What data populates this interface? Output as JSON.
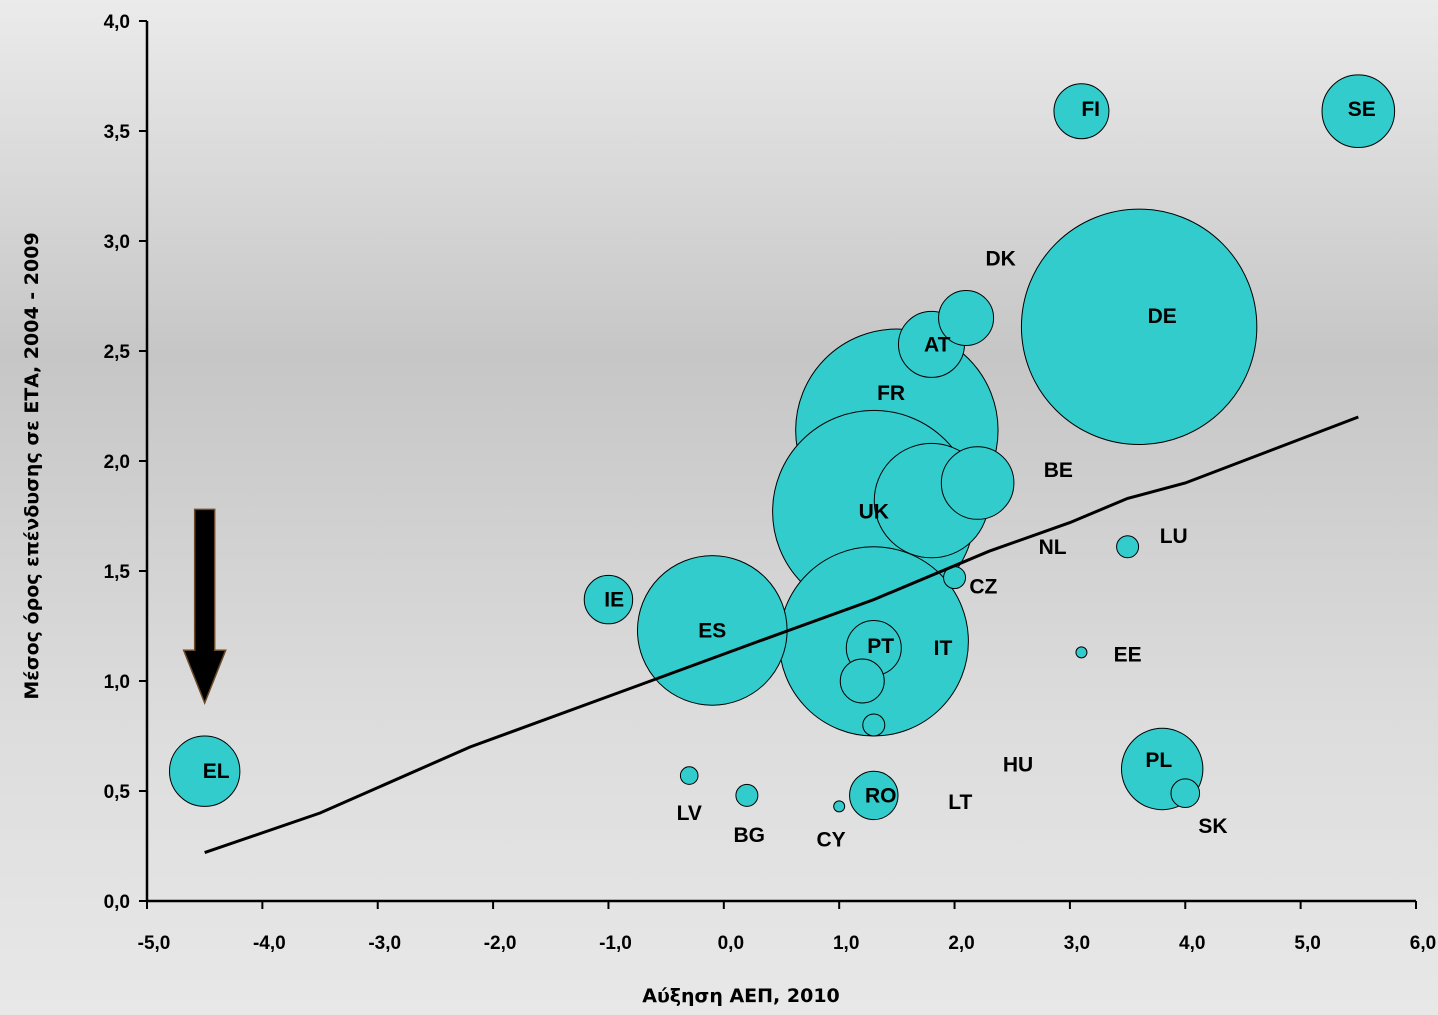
{
  "colors": {
    "bubble_fill": "#33CCCC",
    "background_outer": "#e4e4e4",
    "background_band": "#c8c8c8",
    "trendline": "#000000",
    "arrow": "#000000"
  },
  "chart_data": {
    "type": "scatter",
    "subtype": "bubble",
    "title": "",
    "xlabel": "Αύξηση ΑΕΠ, 2010",
    "ylabel": "Μέσος όρος επένδυσης σε ΕΤΑ, 2004 - 2009",
    "xlim": [
      -5.0,
      6.0
    ],
    "ylim": [
      0.0,
      4.0
    ],
    "x_ticks": [
      -5,
      -4,
      -3,
      -2,
      -1,
      0,
      1,
      2,
      3,
      4,
      5,
      6
    ],
    "x_tick_labels": [
      "-5,0",
      "-4,0",
      "-3,0",
      "-2,0",
      "-1,0",
      "0,0",
      "1,0",
      "2,0",
      "3,0",
      "4,0",
      "5,0",
      "6,0"
    ],
    "y_ticks": [
      0,
      0.5,
      1.0,
      1.5,
      2.0,
      2.5,
      3.0,
      3.5,
      4.0
    ],
    "y_tick_labels": [
      "0,0",
      "0,5",
      "1,0",
      "1,5",
      "2,0",
      "2,5",
      "3,0",
      "3,5",
      "4,0"
    ],
    "grid": false,
    "legend": "none",
    "points": [
      {
        "label": "DE",
        "x": 3.6,
        "y": 2.61,
        "size": 107,
        "label_dx": 0.2,
        "label_dy": 0.05
      },
      {
        "label": "FR",
        "x": 1.5,
        "y": 2.14,
        "size": 92,
        "label_dx": -0.05,
        "label_dy": 0.17
      },
      {
        "label": "UK",
        "x": 1.3,
        "y": 1.77,
        "size": 92,
        "label_dx": 0.0,
        "label_dy": 0.0
      },
      {
        "label": "IT",
        "x": 1.3,
        "y": 1.18,
        "size": 86,
        "label_dx": 0.6,
        "label_dy": -0.03
      },
      {
        "label": "ES",
        "x": -0.1,
        "y": 1.23,
        "size": 68,
        "label_dx": 0.0,
        "label_dy": 0.0
      },
      {
        "label": "NL",
        "x": 1.8,
        "y": 1.82,
        "size": 52,
        "label_dx": 1.05,
        "label_dy": -0.21
      },
      {
        "label": "BE",
        "x": 2.2,
        "y": 1.9,
        "size": 33,
        "label_dx": 0.7,
        "label_dy": 0.06
      },
      {
        "label": "PL",
        "x": 3.8,
        "y": 0.6,
        "size": 37,
        "label_dx": -0.03,
        "label_dy": 0.04
      },
      {
        "label": "SE",
        "x": 5.5,
        "y": 3.59,
        "size": 33,
        "label_dx": 0.03,
        "label_dy": 0.01
      },
      {
        "label": "AT",
        "x": 1.8,
        "y": 2.53,
        "size": 30,
        "label_dx": 0.05,
        "label_dy": 0.0
      },
      {
        "label": "DK",
        "x": 2.1,
        "y": 2.65,
        "size": 25,
        "label_dx": 0.3,
        "label_dy": 0.27
      },
      {
        "label": "EL",
        "x": -4.5,
        "y": 0.59,
        "size": 32,
        "label_dx": 0.1,
        "label_dy": 0.0
      },
      {
        "label": "FI",
        "x": 3.1,
        "y": 3.59,
        "size": 25,
        "label_dx": 0.08,
        "label_dy": 0.01
      },
      {
        "label": "PT",
        "x": 1.3,
        "y": 1.15,
        "size": 25,
        "label_dx": 0.06,
        "label_dy": 0.01
      },
      {
        "label": "IE",
        "x": -1.0,
        "y": 1.37,
        "size": 22,
        "label_dx": 0.05,
        "label_dy": 0.0
      },
      {
        "label": "CZ",
        "x": 2.0,
        "y": 1.47,
        "size": 10,
        "label_dx": 0.25,
        "label_dy": -0.04
      },
      {
        "label": "RO",
        "x": 1.3,
        "y": 0.48,
        "size": 22,
        "label_dx": 0.06,
        "label_dy": 0.0
      },
      {
        "label": "HU",
        "x": 1.2,
        "y": 1.0,
        "size": 20,
        "label_dx": 1.35,
        "label_dy": -0.38
      },
      {
        "label": "SK",
        "x": 4.0,
        "y": 0.49,
        "size": 13,
        "label_dx": 0.24,
        "label_dy": -0.15
      },
      {
        "label": "FI_",
        "x": 1.3,
        "y": 0.8,
        "size": 10
      },
      {
        "label": "LU",
        "x": 3.5,
        "y": 1.61,
        "size": 10,
        "label_dx": 0.4,
        "label_dy": 0.05
      },
      {
        "label": "BG",
        "x": 0.2,
        "y": 0.48,
        "size": 10,
        "label_dx": 0.02,
        "label_dy": -0.18
      },
      {
        "label": "LV",
        "x": -0.3,
        "y": 0.57,
        "size": 8,
        "label_dx": 0.0,
        "label_dy": -0.17
      },
      {
        "label": "EE",
        "x": 3.1,
        "y": 1.13,
        "size": 5,
        "label_dx": 0.4,
        "label_dy": -0.01
      },
      {
        "label": "CY",
        "x": 1.0,
        "y": 0.43,
        "size": 5,
        "label_dx": -0.07,
        "label_dy": -0.15
      },
      {
        "label": "LT",
        "x": 2.05,
        "y": 0.45,
        "size": 0,
        "label_dx": 0.0,
        "label_dy": 0.0
      }
    ],
    "trendline": {
      "x": [
        -4.5,
        -3.5,
        -2.2,
        -1.0,
        0.3,
        1.3,
        2.3,
        3.0,
        3.5,
        4.0,
        5.5
      ],
      "y": [
        0.22,
        0.4,
        0.7,
        0.93,
        1.18,
        1.37,
        1.59,
        1.72,
        1.83,
        1.9,
        2.2
      ]
    },
    "annotations": [
      {
        "type": "arrow-down",
        "x": -4.5,
        "y_from": 1.78,
        "y_to": 1.0
      }
    ]
  }
}
